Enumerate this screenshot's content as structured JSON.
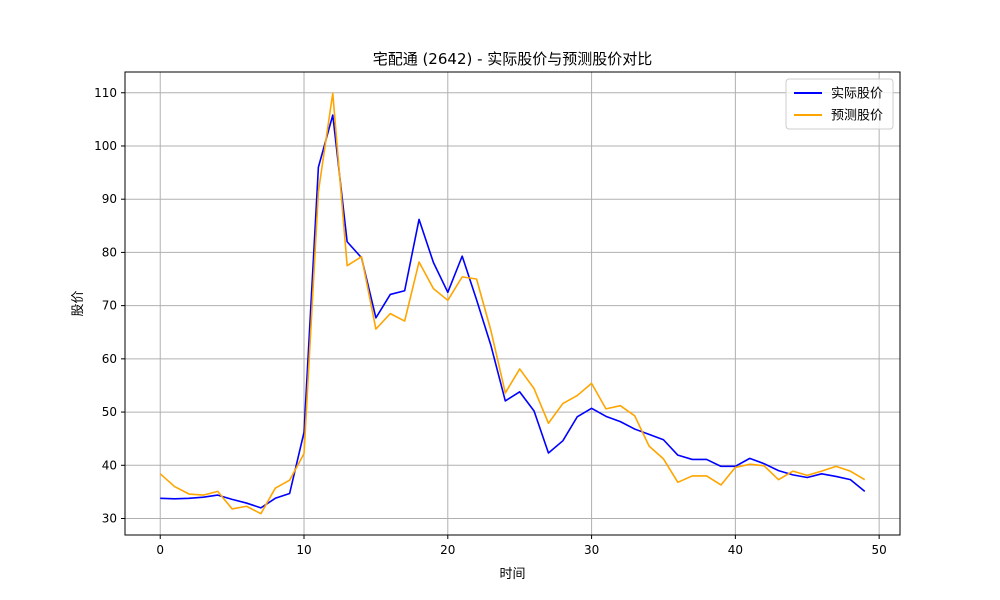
{
  "chart_data": {
    "type": "line",
    "title": "宅配通 (2642) - 实际股价与预测股价对比",
    "xlabel": "时间",
    "ylabel": "股价",
    "xlim": [
      -2.45,
      51.45
    ],
    "ylim": [
      26.9,
      113.9
    ],
    "xticks": [
      0,
      10,
      20,
      30,
      40,
      50
    ],
    "yticks": [
      30,
      40,
      50,
      60,
      70,
      80,
      90,
      100,
      110
    ],
    "grid": true,
    "legend_position": "top-right",
    "series": [
      {
        "name": "实际股价",
        "color": "#0000ff",
        "x": [
          0,
          1,
          2,
          3,
          4,
          5,
          6,
          7,
          8,
          9,
          10,
          11,
          12,
          13,
          14,
          15,
          16,
          17,
          18,
          19,
          20,
          21,
          22,
          23,
          24,
          25,
          26,
          27,
          28,
          29,
          30,
          31,
          32,
          33,
          34,
          35,
          36,
          37,
          38,
          39,
          40,
          41,
          42,
          43,
          44,
          45,
          46,
          47,
          48,
          49
        ],
        "values": [
          33.8,
          33.7,
          33.8,
          34.0,
          34.4,
          33.6,
          32.9,
          32.0,
          33.8,
          34.7,
          46.2,
          96.0,
          105.8,
          82.0,
          79.0,
          67.7,
          72.1,
          72.8,
          86.2,
          78.1,
          72.5,
          79.3,
          71.1,
          62.5,
          52.1,
          53.8,
          50.2,
          42.3,
          44.6,
          49.1,
          50.7,
          49.2,
          48.2,
          46.8,
          45.8,
          44.8,
          41.9,
          41.1,
          41.1,
          39.8,
          39.8,
          41.3,
          40.3,
          39.0,
          38.2,
          37.7,
          38.4,
          37.9,
          37.3,
          35.1
        ]
      },
      {
        "name": "预测股价",
        "color": "#ffa500",
        "x": [
          0,
          1,
          2,
          3,
          4,
          5,
          6,
          7,
          8,
          9,
          10,
          11,
          12,
          13,
          14,
          15,
          16,
          17,
          18,
          19,
          20,
          21,
          22,
          23,
          24,
          25,
          26,
          27,
          28,
          29,
          30,
          31,
          32,
          33,
          34,
          35,
          36,
          37,
          38,
          39,
          40,
          41,
          42,
          43,
          44,
          45,
          46,
          47,
          48,
          49
        ],
        "values": [
          38.4,
          36.0,
          34.6,
          34.4,
          35.1,
          31.8,
          32.3,
          30.9,
          35.7,
          37.2,
          42.2,
          91.4,
          109.9,
          77.5,
          79.2,
          65.6,
          68.5,
          67.1,
          78.2,
          73.2,
          71.0,
          75.4,
          75.0,
          65.3,
          53.6,
          58.1,
          54.4,
          47.9,
          51.6,
          53.1,
          55.4,
          50.6,
          51.2,
          49.3,
          43.6,
          41.2,
          36.8,
          38.0,
          38.0,
          36.3,
          39.6,
          40.2,
          39.9,
          37.3,
          38.9,
          38.1,
          38.9,
          39.8,
          38.9,
          37.3
        ]
      }
    ]
  }
}
